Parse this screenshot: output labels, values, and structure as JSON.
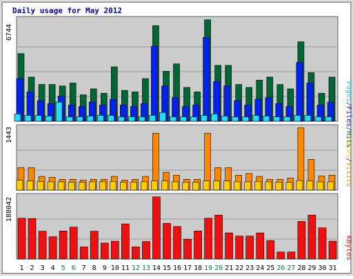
{
  "chart_data": [
    {
      "type": "bar",
      "title": "Daily usage for May 2012",
      "categories": [
        "1",
        "2",
        "3",
        "4",
        "5",
        "6",
        "7",
        "8",
        "9",
        "10",
        "11",
        "12",
        "13",
        "14",
        "15",
        "16",
        "17",
        "18",
        "19",
        "20",
        "21",
        "22",
        "23",
        "24",
        "25",
        "26",
        "27",
        "28",
        "29",
        "30",
        "31"
      ],
      "weekend_days": [
        "5",
        "6",
        "12",
        "13",
        "19",
        "20",
        "26",
        "27"
      ],
      "ymax_label": "6744",
      "ylim": [
        0,
        6744
      ],
      "grid": true,
      "series": [
        {
          "name": "Hits",
          "color": "#006633",
          "values": [
            4600,
            3000,
            2500,
            2500,
            2400,
            2600,
            1800,
            2200,
            1900,
            3700,
            2100,
            2000,
            2900,
            6500,
            3400,
            3900,
            2300,
            2000,
            6900,
            3800,
            3800,
            2500,
            2300,
            2800,
            3000,
            2500,
            2200,
            5400,
            3300,
            1900,
            3000
          ]
        },
        {
          "name": "Files",
          "color": "#0022ee",
          "values": [
            2900,
            2000,
            1400,
            1200,
            1700,
            1100,
            1000,
            1300,
            1100,
            1500,
            1100,
            1000,
            1200,
            5100,
            2400,
            1600,
            1000,
            1100,
            5700,
            2700,
            2400,
            1400,
            1100,
            1500,
            1600,
            1200,
            1000,
            4000,
            2600,
            1100,
            1300
          ]
        },
        {
          "name": "Pages",
          "color": "#22ddff",
          "values": [
            500,
            400,
            400,
            350,
            1300,
            300,
            300,
            350,
            400,
            400,
            300,
            300,
            300,
            400,
            600,
            300,
            300,
            300,
            400,
            500,
            350,
            300,
            300,
            400,
            350,
            300,
            300,
            400,
            400,
            300,
            300
          ]
        }
      ]
    },
    {
      "type": "bar",
      "categories": [
        "1",
        "2",
        "3",
        "4",
        "5",
        "6",
        "7",
        "8",
        "9",
        "10",
        "11",
        "12",
        "13",
        "14",
        "15",
        "16",
        "17",
        "18",
        "19",
        "20",
        "21",
        "22",
        "23",
        "24",
        "25",
        "26",
        "27",
        "28",
        "29",
        "30",
        "31"
      ],
      "ymax_label": "1443",
      "ylim": [
        0,
        1443
      ],
      "grid": true,
      "series": [
        {
          "name": "Visits",
          "color": "#ff8800",
          "values": [
            540,
            540,
            330,
            310,
            260,
            260,
            240,
            260,
            260,
            330,
            240,
            260,
            330,
            1370,
            430,
            360,
            260,
            260,
            1370,
            540,
            540,
            360,
            400,
            330,
            260,
            260,
            290,
            1500,
            740,
            340,
            360
          ]
        },
        {
          "name": "Sites",
          "color": "#ffcc00",
          "values": [
            240,
            220,
            210,
            200,
            200,
            190,
            190,
            200,
            200,
            210,
            190,
            190,
            200,
            220,
            220,
            200,
            190,
            190,
            220,
            220,
            220,
            200,
            200,
            210,
            200,
            190,
            190,
            230,
            220,
            200,
            200
          ]
        }
      ]
    },
    {
      "type": "bar",
      "categories": [
        "1",
        "2",
        "3",
        "4",
        "5",
        "6",
        "7",
        "8",
        "9",
        "10",
        "11",
        "12",
        "13",
        "14",
        "15",
        "16",
        "17",
        "18",
        "19",
        "20",
        "21",
        "22",
        "23",
        "24",
        "25",
        "26",
        "27",
        "28",
        "29",
        "30",
        "31"
      ],
      "ymax_label": "188042",
      "ylim": [
        0,
        188042
      ],
      "grid": true,
      "series": [
        {
          "name": "KBytes",
          "color": "#ee1111",
          "values": [
            128000,
            127000,
            87000,
            70000,
            88000,
            100000,
            38000,
            87000,
            50000,
            56000,
            110000,
            38000,
            55000,
            195000,
            112000,
            102000,
            62000,
            88000,
            128000,
            138000,
            82000,
            72000,
            72000,
            82000,
            58000,
            22000,
            22000,
            118000,
            138000,
            98000,
            56000
          ]
        }
      ]
    }
  ]
}
